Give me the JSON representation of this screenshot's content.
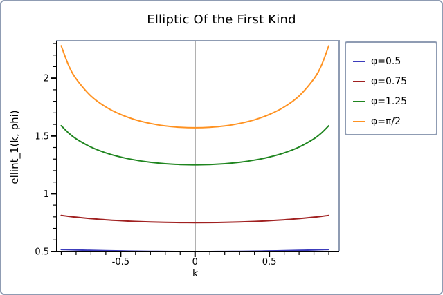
{
  "window": {
    "border_color": "#8f9cb3"
  },
  "chart_data": {
    "type": "line",
    "title": "Elliptic Of the First Kind",
    "xlabel": "k",
    "ylabel": "ellint_1(k, phi)",
    "xlim": [
      -0.93,
      0.965
    ],
    "ylim": [
      0.5,
      2.33
    ],
    "xticks": [
      -0.5,
      0,
      0.5
    ],
    "xtick_labels": [
      "-0.5",
      "0",
      "0.5"
    ],
    "yticks": [
      0.5,
      1,
      1.5,
      2
    ],
    "ytick_labels": [
      "0.5",
      "1",
      "1.5",
      "2"
    ],
    "minor_xticks": [
      -0.9,
      -0.8,
      -0.7,
      -0.6,
      -0.4,
      -0.3,
      -0.2,
      -0.1,
      0.1,
      0.2,
      0.3,
      0.4,
      0.6,
      0.7,
      0.8,
      0.9
    ],
    "minor_yticks": [
      0.6,
      0.7,
      0.8,
      0.9,
      1.1,
      1.2,
      1.3,
      1.4,
      1.6,
      1.7,
      1.8,
      1.9,
      2.1,
      2.2,
      2.3
    ],
    "grid": false,
    "zero_axis_x": 0,
    "legend_position": "top-right",
    "axis_color": "#000000",
    "frame_color": "#8f9cb3",
    "x": [
      -0.9,
      -0.85,
      -0.8,
      -0.7,
      -0.6,
      -0.5,
      -0.4,
      -0.3,
      -0.2,
      -0.1,
      0,
      0.1,
      0.2,
      0.3,
      0.4,
      0.5,
      0.6,
      0.7,
      0.8,
      0.85,
      0.9
    ],
    "series": [
      {
        "name": "φ=0.5",
        "color": "#3c3cbc",
        "values": [
          0.5176,
          0.5155,
          0.5136,
          0.5102,
          0.5074,
          0.5051,
          0.5032,
          0.5018,
          0.5008,
          0.5002,
          0.5,
          0.5002,
          0.5008,
          0.5018,
          0.5032,
          0.5051,
          0.5074,
          0.5102,
          0.5136,
          0.5155,
          0.5176
        ]
      },
      {
        "name": "φ=0.75",
        "color": "#a02020",
        "values": [
          0.8126,
          0.8044,
          0.797,
          0.7846,
          0.7746,
          0.7666,
          0.7604,
          0.7558,
          0.7525,
          0.7506,
          0.75,
          0.7506,
          0.7525,
          0.7558,
          0.7604,
          0.7666,
          0.7746,
          0.7846,
          0.797,
          0.8044,
          0.8126
        ]
      },
      {
        "name": "φ=1.25",
        "color": "#1f851f",
        "values": [
          1.5889,
          1.5248,
          1.4754,
          1.4034,
          1.3534,
          1.3174,
          1.2911,
          1.2723,
          1.2597,
          1.2525,
          1.25,
          1.2525,
          1.2597,
          1.2723,
          1.2911,
          1.3174,
          1.3534,
          1.4034,
          1.4754,
          1.5248,
          1.5889
        ]
      },
      {
        "name": "φ=π/2",
        "color": "#ff9221",
        "values": [
          2.2805,
          2.1099,
          1.9953,
          1.8457,
          1.7508,
          1.6858,
          1.64,
          1.608,
          1.5869,
          1.5747,
          1.5708,
          1.5747,
          1.5869,
          1.608,
          1.64,
          1.6858,
          1.7508,
          1.8457,
          1.9953,
          2.1099,
          2.2805
        ]
      }
    ]
  }
}
